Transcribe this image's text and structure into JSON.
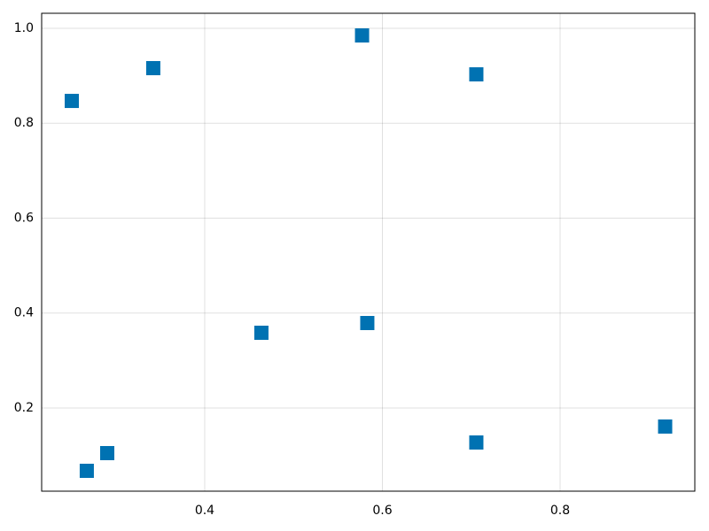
{
  "chart_data": {
    "type": "scatter",
    "x": [
      0.2504,
      0.2673,
      0.2903,
      0.3421,
      0.4638,
      0.5771,
      0.583,
      0.7057,
      0.7057,
      0.9182
    ],
    "values": [
      0.847,
      0.0676,
      0.1049,
      0.9161,
      0.3585,
      0.985,
      0.379,
      0.903,
      0.1273,
      0.1609
    ],
    "color": "#0072b2",
    "marker": "square",
    "xlim": [
      0.2165,
      0.9516
    ],
    "ylim": [
      0.0247,
      1.0317
    ],
    "xticks": [
      0.4,
      0.6,
      0.8
    ],
    "yticks": [
      0.2,
      0.4,
      0.6,
      0.8,
      {
        "value": 1,
        "label": "1.0"
      }
    ],
    "grid": true
  }
}
